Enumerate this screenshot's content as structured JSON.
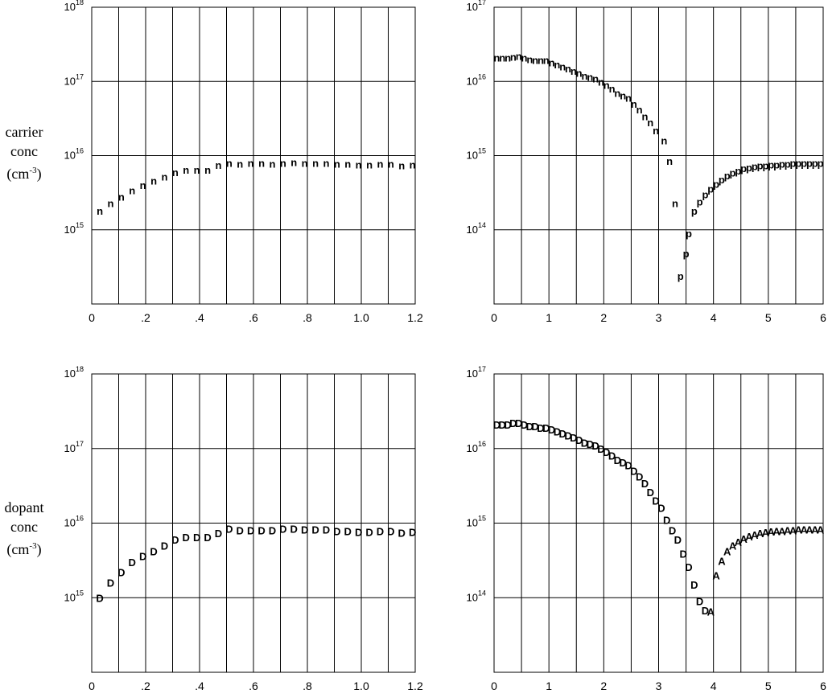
{
  "y_labels": {
    "top": {
      "l1": "carrier",
      "l2": "conc",
      "l3a": "(cm",
      "l3sup": "-3",
      "l3b": ")"
    },
    "bottom": {
      "l1": "dopant",
      "l2": "conc",
      "l3a": "(cm",
      "l3sup": "-3",
      "l3b": ")"
    }
  },
  "chart_data": [
    {
      "type": "scatter",
      "panel": "carrier-left",
      "title": "",
      "xlabel": "",
      "ylabel": "carrier conc (cm-3)",
      "xlim": [
        0,
        1.2
      ],
      "y_log": true,
      "ylim_exp": [
        14,
        18
      ],
      "xticks": [
        "0",
        ".2",
        ".4",
        ".6",
        ".8",
        "1.0",
        "1.2"
      ],
      "ytick_exps": [
        15,
        16,
        17,
        18
      ],
      "grid": true,
      "series": [
        {
          "marker": "n",
          "x": [
            0.03,
            0.07,
            0.11,
            0.15,
            0.19,
            0.23,
            0.27,
            0.31,
            0.35,
            0.39,
            0.43,
            0.47,
            0.51,
            0.55,
            0.59,
            0.63,
            0.67,
            0.71,
            0.75,
            0.79,
            0.83,
            0.87,
            0.91,
            0.95,
            0.99,
            1.03,
            1.07,
            1.11,
            1.15,
            1.19
          ],
          "y": [
            1800000000000000.0,
            2300000000000000.0,
            2800000000000000.0,
            3400000000000000.0,
            4000000000000000.0,
            4600000000000000.0,
            5200000000000000.0,
            6000000000000000.0,
            6500000000000000.0,
            6500000000000000.0,
            6500000000000000.0,
            7500000000000000.0,
            8000000000000000.0,
            7800000000000000.0,
            8000000000000000.0,
            8000000000000000.0,
            7800000000000000.0,
            8000000000000000.0,
            8200000000000000.0,
            8000000000000000.0,
            8000000000000000.0,
            8000000000000000.0,
            7800000000000000.0,
            7800000000000000.0,
            7600000000000000.0,
            7600000000000000.0,
            7800000000000000.0,
            7800000000000000.0,
            7400000000000000.0,
            7600000000000000.0
          ]
        }
      ]
    },
    {
      "type": "scatter",
      "panel": "carrier-right",
      "title": "",
      "xlabel": "",
      "ylabel": "",
      "xlim": [
        0,
        6
      ],
      "y_log": true,
      "ylim_exp": [
        13,
        17
      ],
      "xticks": [
        "0",
        "1",
        "2",
        "3",
        "4",
        "5",
        "6"
      ],
      "ytick_exps": [
        14,
        15,
        16,
        17
      ],
      "grid": true,
      "series": [
        {
          "marker": "n",
          "x": [
            0.05,
            0.15,
            0.25,
            0.35,
            0.45,
            0.55,
            0.65,
            0.75,
            0.85,
            0.95,
            1.05,
            1.15,
            1.25,
            1.35,
            1.45,
            1.55,
            1.65,
            1.75,
            1.85,
            1.95,
            2.05,
            2.15,
            2.25,
            2.35,
            2.45,
            2.55,
            2.65,
            2.75,
            2.85,
            2.95,
            3.1,
            3.2,
            3.3
          ],
          "y": [
            2.1e+16,
            2.1e+16,
            2.1e+16,
            2.15e+16,
            2.2e+16,
            2.1e+16,
            2e+16,
            1.95e+16,
            1.95e+16,
            1.95e+16,
            1.8e+16,
            1.7e+16,
            1.6e+16,
            1.5e+16,
            1.4e+16,
            1.3e+16,
            1.2e+16,
            1.15e+16,
            1.1e+16,
            1e+16,
            9000000000000000.0,
            8000000000000000.0,
            7000000000000000.0,
            6500000000000000.0,
            6000000000000000.0,
            5000000000000000.0,
            4200000000000000.0,
            3400000000000000.0,
            2800000000000000.0,
            2200000000000000.0,
            1600000000000000.0,
            850000000000000.0,
            230000000000000.0
          ]
        },
        {
          "marker": "p",
          "x": [
            3.4,
            3.5,
            3.55,
            3.65,
            3.75,
            3.85,
            3.95,
            4.05,
            4.15,
            4.25,
            4.35,
            4.45,
            4.55,
            4.65,
            4.75,
            4.85,
            4.95,
            5.05,
            5.15,
            5.25,
            5.35,
            5.45,
            5.55,
            5.65,
            5.75,
            5.85,
            5.95
          ],
          "y": [
            24000000000000.0,
            48000000000000.0,
            90000000000000.0,
            180000000000000.0,
            240000000000000.0,
            300000000000000.0,
            360000000000000.0,
            420000000000000.0,
            480000000000000.0,
            540000000000000.0,
            590000000000000.0,
            630000000000000.0,
            680000000000000.0,
            700000000000000.0,
            720000000000000.0,
            740000000000000.0,
            740000000000000.0,
            760000000000000.0,
            760000000000000.0,
            780000000000000.0,
            780000000000000.0,
            800000000000000.0,
            800000000000000.0,
            800000000000000.0,
            800000000000000.0,
            800000000000000.0,
            800000000000000.0
          ]
        }
      ]
    },
    {
      "type": "scatter",
      "panel": "dopant-left",
      "title": "",
      "xlabel": "",
      "ylabel": "dopant conc (cm-3)",
      "xlim": [
        0,
        1.2
      ],
      "y_log": true,
      "ylim_exp": [
        14,
        18
      ],
      "xticks": [
        "0",
        ".2",
        ".4",
        ".6",
        ".8",
        "1.0",
        "1.2"
      ],
      "ytick_exps": [
        15,
        16,
        17,
        18
      ],
      "grid": true,
      "series": [
        {
          "marker": "D",
          "x": [
            0.03,
            0.07,
            0.11,
            0.15,
            0.19,
            0.23,
            0.27,
            0.31,
            0.35,
            0.39,
            0.43,
            0.47,
            0.51,
            0.55,
            0.59,
            0.63,
            0.67,
            0.71,
            0.75,
            0.79,
            0.83,
            0.87,
            0.91,
            0.95,
            0.99,
            1.03,
            1.07,
            1.11,
            1.15,
            1.19
          ],
          "y": [
            1000000000000000.0,
            1600000000000000.0,
            2200000000000000.0,
            3000000000000000.0,
            3600000000000000.0,
            4200000000000000.0,
            5000000000000000.0,
            6000000000000000.0,
            6500000000000000.0,
            6500000000000000.0,
            6500000000000000.0,
            7300000000000000.0,
            8400000000000000.0,
            8000000000000000.0,
            8000000000000000.0,
            8000000000000000.0,
            8000000000000000.0,
            8400000000000000.0,
            8400000000000000.0,
            8200000000000000.0,
            8200000000000000.0,
            8200000000000000.0,
            7800000000000000.0,
            7800000000000000.0,
            7600000000000000.0,
            7600000000000000.0,
            7800000000000000.0,
            7800000000000000.0,
            7400000000000000.0,
            7600000000000000.0
          ]
        }
      ]
    },
    {
      "type": "scatter",
      "panel": "dopant-right",
      "title": "",
      "xlabel": "",
      "ylabel": "",
      "xlim": [
        0,
        6
      ],
      "y_log": true,
      "ylim_exp": [
        13,
        17
      ],
      "xticks": [
        "0",
        "1",
        "2",
        "3",
        "4",
        "5",
        "6"
      ],
      "ytick_exps": [
        14,
        15,
        16,
        17
      ],
      "grid": true,
      "series": [
        {
          "marker": "D",
          "x": [
            0.05,
            0.15,
            0.25,
            0.35,
            0.45,
            0.55,
            0.65,
            0.75,
            0.85,
            0.95,
            1.05,
            1.15,
            1.25,
            1.35,
            1.45,
            1.55,
            1.65,
            1.75,
            1.85,
            1.95,
            2.05,
            2.15,
            2.25,
            2.35,
            2.45,
            2.55,
            2.65,
            2.75,
            2.85,
            2.95,
            3.05,
            3.15,
            3.25,
            3.35,
            3.45,
            3.55,
            3.65,
            3.75,
            3.85
          ],
          "y": [
            2.1e+16,
            2.1e+16,
            2.1e+16,
            2.2e+16,
            2.2e+16,
            2.1e+16,
            2e+16,
            2e+16,
            1.9e+16,
            1.9e+16,
            1.8e+16,
            1.7e+16,
            1.6e+16,
            1.5e+16,
            1.4e+16,
            1.3e+16,
            1.2e+16,
            1.15e+16,
            1.1e+16,
            1e+16,
            9000000000000000.0,
            8000000000000000.0,
            7000000000000000.0,
            6500000000000000.0,
            6000000000000000.0,
            5000000000000000.0,
            4200000000000000.0,
            3400000000000000.0,
            2600000000000000.0,
            2000000000000000.0,
            1600000000000000.0,
            1100000000000000.0,
            800000000000000.0,
            600000000000000.0,
            390000000000000.0,
            260000000000000.0,
            150000000000000.0,
            90000000000000.0,
            68000000000000.0
          ]
        },
        {
          "marker": "A",
          "x": [
            3.95,
            4.05,
            4.15,
            4.25,
            4.35,
            4.45,
            4.55,
            4.65,
            4.75,
            4.85,
            4.95,
            5.05,
            5.15,
            5.25,
            5.35,
            5.45,
            5.55,
            5.65,
            5.75,
            5.85,
            5.95
          ],
          "y": [
            65000000000000.0,
            200000000000000.0,
            310000000000000.0,
            420000000000000.0,
            500000000000000.0,
            560000000000000.0,
            620000000000000.0,
            660000000000000.0,
            700000000000000.0,
            730000000000000.0,
            750000000000000.0,
            770000000000000.0,
            780000000000000.0,
            780000000000000.0,
            800000000000000.0,
            800000000000000.0,
            820000000000000.0,
            820000000000000.0,
            820000000000000.0,
            820000000000000.0,
            820000000000000.0
          ]
        }
      ]
    }
  ]
}
